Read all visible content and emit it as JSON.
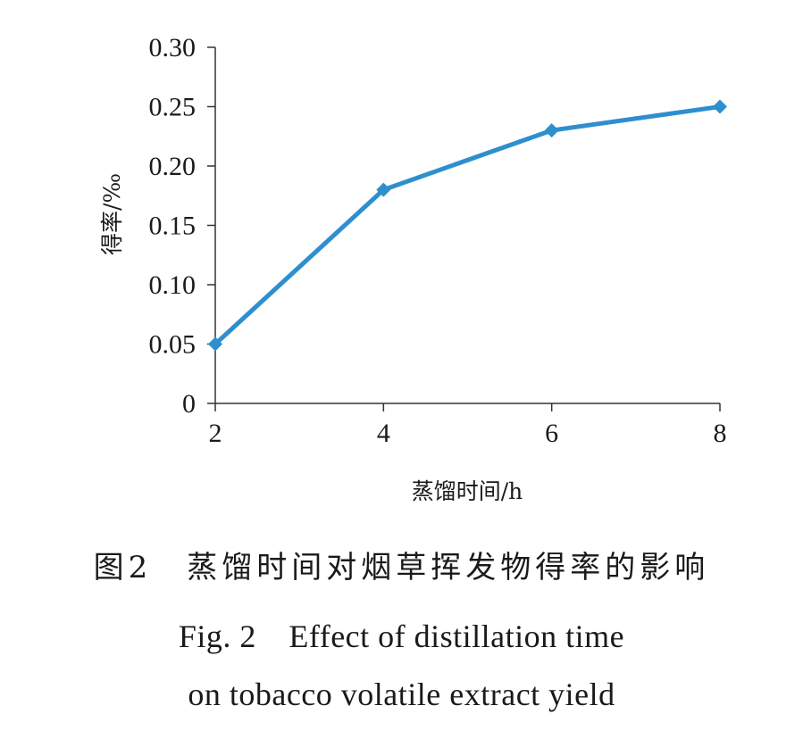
{
  "chart_data": {
    "type": "line",
    "x": [
      2,
      4,
      6,
      8
    ],
    "series": [
      {
        "values": [
          0.05,
          0.18,
          0.23,
          0.25
        ]
      }
    ],
    "xlabel": "蒸馏时间/h",
    "ylabel": "得率/‰",
    "xlim": [
      2,
      8
    ],
    "ylim": [
      0,
      0.3
    ],
    "x_ticks": [
      "2",
      "4",
      "6",
      "8"
    ],
    "y_ticks": [
      "0",
      "0.05",
      "0.10",
      "0.15",
      "0.20",
      "0.25",
      "0.30"
    ],
    "grid": false,
    "line_color": "#2e8fce",
    "marker": "diamond"
  },
  "caption": {
    "chinese": "图2　蒸馏时间对烟草挥发物得率的影响",
    "english_line1": "Fig. 2　Effect of distillation time",
    "english_line2": "on tobacco volatile extract yield"
  }
}
